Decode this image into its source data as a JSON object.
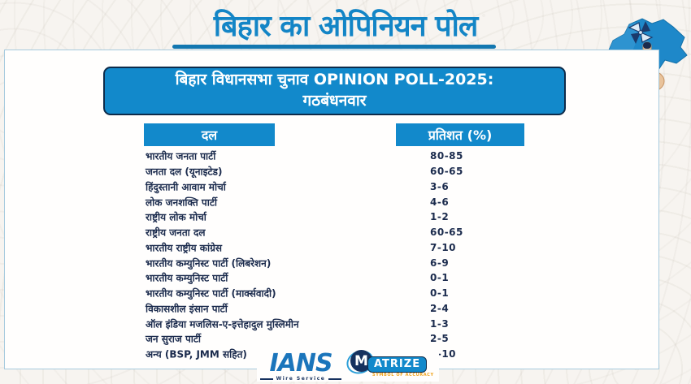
{
  "page": {
    "title": "बिहार का ओपिनियन पोल"
  },
  "header": {
    "line1": "बिहार विधानसभा चुनाव OPINION POLL-2025:",
    "line2": "गठबंधनवार"
  },
  "chart_data": {
    "type": "table",
    "title": "बिहार विधानसभा चुनाव OPINION POLL-2025: गठबंधनवार",
    "columns": [
      "दल",
      "प्रतिशत (%)"
    ],
    "rows": [
      [
        "भारतीय जनता पार्टी",
        "80-85"
      ],
      [
        "जनता दल (यूनाइटेड)",
        "60-65"
      ],
      [
        "हिंदुस्तानी आवाम मोर्चा",
        "3-6"
      ],
      [
        "लोक जनशक्ति पार्टी",
        "4-6"
      ],
      [
        "राष्ट्रीय लोक मोर्चा",
        "1-2"
      ],
      [
        "राष्ट्रीय जनता दल",
        "60-65"
      ],
      [
        "भारतीय राष्ट्रीय कांग्रेस",
        "7-10"
      ],
      [
        "भारतीय कम्युनिस्ट पार्टी (लिबरेशन)",
        "6-9"
      ],
      [
        "भारतीय कम्युनिस्ट पार्टी",
        "0-1"
      ],
      [
        "भारतीय कम्युनिस्ट पार्टी (मार्क्सवादी)",
        "0-1"
      ],
      [
        "विकासशील इंसान पार्टी",
        "2-4"
      ],
      [
        "ऑल इंडिया मजलिस-ए-इत्तेहादुल मुस्लिमीन",
        "1-3"
      ],
      [
        "जन सुराज पार्टी",
        "2-5"
      ],
      [
        "अन्य (BSP, JMM सहित)",
        "7-10"
      ]
    ]
  },
  "logos": {
    "ians": {
      "name": "IANS",
      "tagline": "Wire Service"
    },
    "matrize": {
      "initial": "M",
      "name": "ATRIZE",
      "tagline": "SYMBOL OF ACCURACY"
    }
  },
  "icons": {
    "bihar_map": "bihar-map-with-voting-hand-and-pinwheel"
  },
  "colors": {
    "title_blue": "#1385c6",
    "box_blue": "#1289cb",
    "navy_text": "#1b2b4d",
    "dark_border": "#0d2b4a",
    "card_border": "#a6cade",
    "background": "#f7f4f0",
    "ians_blue": "#1b75bb",
    "matrize_orange": "#efa31d"
  }
}
